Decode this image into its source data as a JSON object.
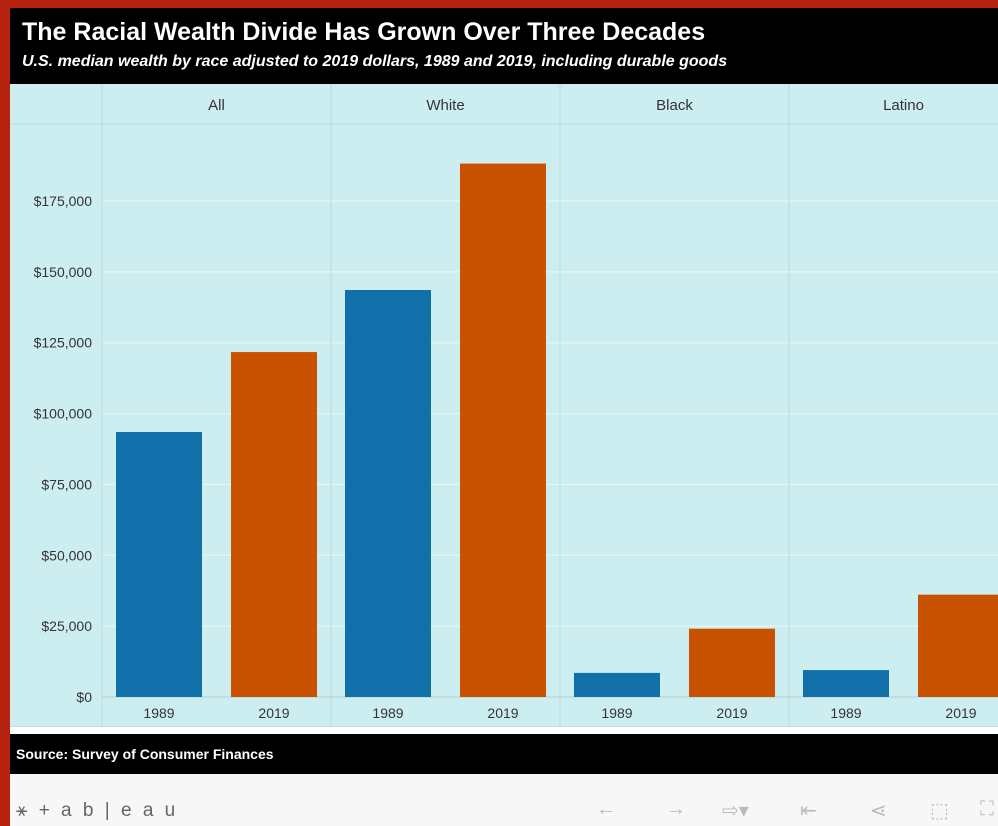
{
  "title": "The Racial Wealth Divide Has Grown Over Three Decades",
  "subtitle": "U.S. median wealth by race adjusted to 2019 dollars, 1989 and 2019, including durable goods",
  "source": "Source: Survey of Consumer Finances",
  "colors": {
    "y1989": "#1170aa",
    "y2019": "#c85200",
    "background": "#cdeef0"
  },
  "footer": {
    "logo_icon": "tableau-logo-icon",
    "logo_text": "+ a b | e a u",
    "toolbar": [
      {
        "name": "undo-icon",
        "glyph": "←"
      },
      {
        "name": "redo-icon",
        "glyph": "→"
      },
      {
        "name": "revert-icon",
        "glyph": "⇨▾"
      },
      {
        "name": "reset-icon",
        "glyph": "⇤"
      },
      {
        "name": "share-icon",
        "glyph": "⋖"
      },
      {
        "name": "download-icon",
        "glyph": "⬚"
      },
      {
        "name": "fullscreen-icon",
        "glyph": "⛶"
      }
    ]
  },
  "chart_data": {
    "type": "bar",
    "panels": [
      "All",
      "White",
      "Black",
      "Latino"
    ],
    "categories": [
      "1989",
      "2019"
    ],
    "series": [
      {
        "panel": "All",
        "values": [
          93500,
          121700
        ]
      },
      {
        "panel": "White",
        "values": [
          143600,
          188200
        ]
      },
      {
        "panel": "Black",
        "values": [
          8500,
          24100
        ]
      },
      {
        "panel": "Latino",
        "values": [
          9500,
          36100
        ]
      }
    ],
    "ylim": [
      0,
      200000
    ],
    "yticks": [
      0,
      25000,
      50000,
      75000,
      100000,
      125000,
      150000,
      175000
    ],
    "ytick_labels": [
      "$0",
      "$25,000",
      "$50,000",
      "$75,000",
      "$100,000",
      "$125,000",
      "$150,000",
      "$175,000"
    ],
    "grid": true,
    "xlabel": "",
    "ylabel": ""
  }
}
